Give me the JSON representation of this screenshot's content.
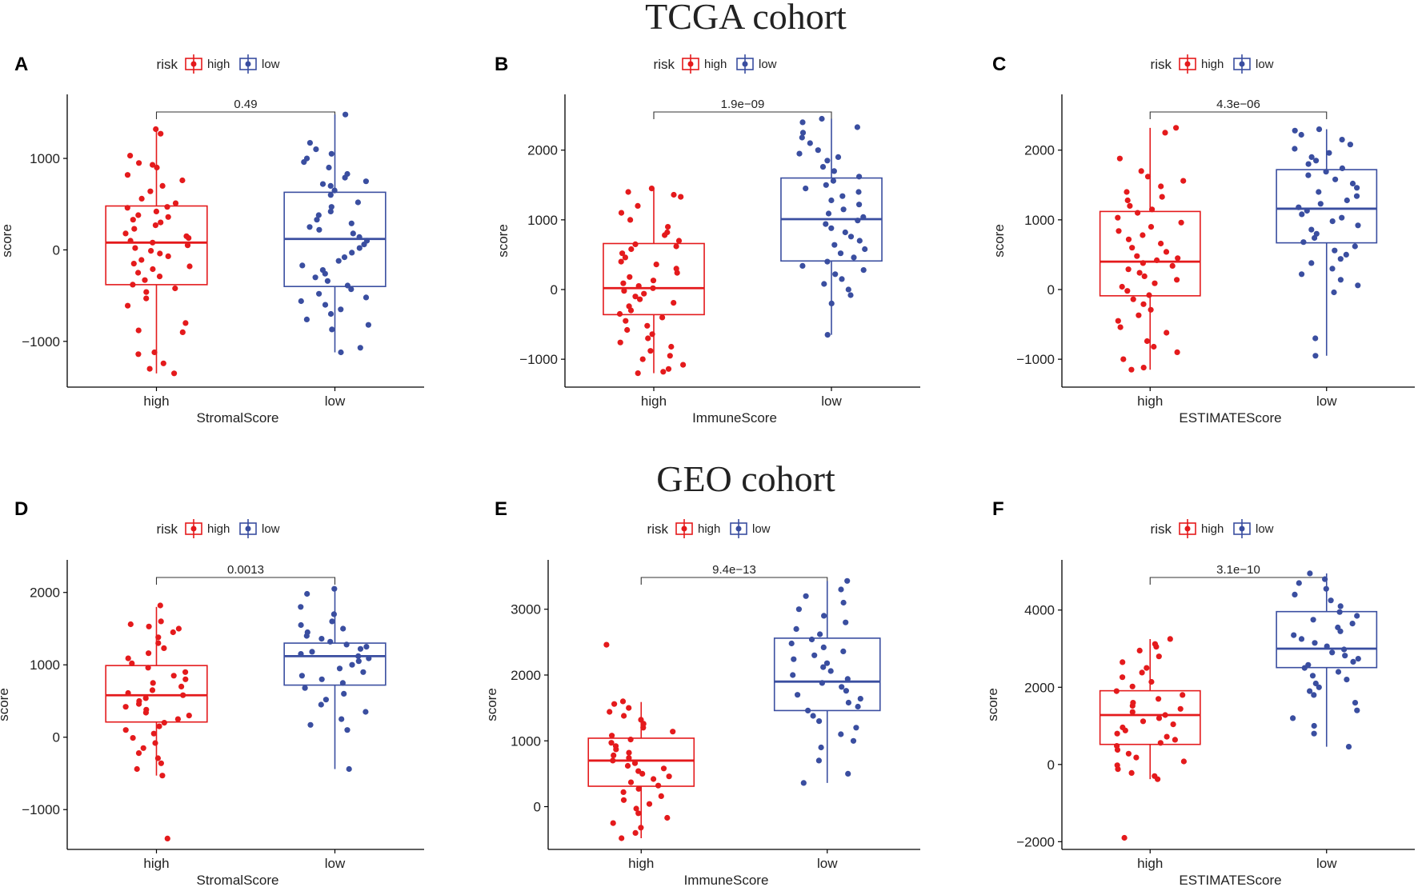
{
  "cohorts": [
    {
      "title": "TCGA cohort"
    },
    {
      "title": "GEO cohort"
    }
  ],
  "legend": {
    "title": "risk",
    "entries": [
      "high",
      "low"
    ]
  },
  "colors": {
    "high": "#e41a1c",
    "low": "#3a4ea0",
    "axis": "#000000"
  },
  "chart_data": [
    {
      "type": "boxplot",
      "panel": "A",
      "cohort": "TCGA cohort",
      "xlabel": "StromalScore",
      "ylabel": "score",
      "categories": [
        "high",
        "low"
      ],
      "ylim": [
        -1500,
        1700
      ],
      "yticks": [
        -1000,
        0,
        1000
      ],
      "pvalue": "0.49",
      "series": [
        {
          "name": "high",
          "min": -1350,
          "q1": -380,
          "median": 80,
          "q3": 480,
          "max": 1330,
          "points": [
            1320,
            1270,
            1030,
            950,
            930,
            900,
            820,
            760,
            700,
            640,
            560,
            510,
            470,
            460,
            420,
            380,
            360,
            330,
            300,
            270,
            230,
            180,
            150,
            130,
            100,
            80,
            50,
            20,
            -10,
            -40,
            -70,
            -110,
            -150,
            -180,
            -210,
            -250,
            -290,
            -330,
            -380,
            -420,
            -460,
            -530,
            -610,
            -800,
            -880,
            -900,
            -1120,
            -1140,
            -1240,
            -1300,
            -1350
          ]
        },
        {
          "name": "low",
          "min": -1120,
          "q1": -400,
          "median": 120,
          "q3": 630,
          "max": 1480,
          "points": [
            1480,
            1170,
            1100,
            1050,
            1000,
            960,
            900,
            830,
            790,
            750,
            720,
            700,
            650,
            600,
            520,
            470,
            420,
            380,
            330,
            290,
            250,
            220,
            180,
            140,
            100,
            60,
            20,
            -30,
            -80,
            -120,
            -170,
            -220,
            -260,
            -300,
            -340,
            -390,
            -430,
            -480,
            -520,
            -560,
            -600,
            -650,
            -700,
            -760,
            -820,
            -870,
            -1070,
            -1120
          ]
        }
      ]
    },
    {
      "type": "boxplot",
      "panel": "B",
      "cohort": "TCGA cohort",
      "xlabel": "ImmuneScore",
      "ylabel": "score",
      "categories": [
        "high",
        "low"
      ],
      "ylim": [
        -1400,
        2800
      ],
      "yticks": [
        -1000,
        0,
        1000,
        2000
      ],
      "pvalue": "1.9e−09",
      "series": [
        {
          "name": "high",
          "min": -1200,
          "q1": -360,
          "median": 20,
          "q3": 660,
          "max": 1450,
          "points": [
            1450,
            1400,
            1360,
            1330,
            1200,
            1100,
            1000,
            900,
            820,
            780,
            700,
            650,
            620,
            580,
            520,
            460,
            400,
            360,
            300,
            240,
            180,
            130,
            90,
            50,
            20,
            -20,
            -60,
            -100,
            -140,
            -190,
            -240,
            -300,
            -350,
            -400,
            -450,
            -520,
            -580,
            -640,
            -700,
            -760,
            -820,
            -880,
            -950,
            -1000,
            -1080,
            -1140,
            -1180,
            -1200
          ]
        },
        {
          "name": "low",
          "min": -650,
          "q1": 410,
          "median": 1010,
          "q3": 1600,
          "max": 2450,
          "points": [
            2450,
            2400,
            2330,
            2250,
            2180,
            2100,
            2000,
            1950,
            1900,
            1850,
            1760,
            1700,
            1620,
            1560,
            1500,
            1450,
            1400,
            1340,
            1280,
            1220,
            1150,
            1090,
            1040,
            990,
            940,
            880,
            820,
            760,
            700,
            640,
            580,
            520,
            460,
            400,
            340,
            280,
            220,
            150,
            80,
            0,
            -80,
            -200,
            -650
          ]
        }
      ]
    },
    {
      "type": "boxplot",
      "panel": "C",
      "cohort": "TCGA cohort",
      "xlabel": "ESTIMATEScore",
      "ylabel": "score",
      "categories": [
        "high",
        "low"
      ],
      "ylim": [
        -1400,
        2800
      ],
      "yticks": [
        -1000,
        0,
        1000,
        2000
      ],
      "pvalue": "4.3e−06",
      "series": [
        {
          "name": "high",
          "min": -1150,
          "q1": -90,
          "median": 400,
          "q3": 1120,
          "max": 2320,
          "points": [
            2320,
            2250,
            1880,
            1700,
            1620,
            1560,
            1480,
            1400,
            1330,
            1280,
            1200,
            1150,
            1100,
            1030,
            960,
            900,
            840,
            780,
            720,
            660,
            600,
            540,
            480,
            450,
            420,
            380,
            340,
            290,
            240,
            190,
            140,
            90,
            40,
            -20,
            -80,
            -140,
            -210,
            -290,
            -370,
            -450,
            -540,
            -620,
            -740,
            -820,
            -900,
            -1000,
            -1120,
            -1150
          ]
        },
        {
          "name": "low",
          "min": -950,
          "q1": 670,
          "median": 1160,
          "q3": 1720,
          "max": 2300,
          "points": [
            2300,
            2280,
            2220,
            2150,
            2080,
            2020,
            1960,
            1900,
            1850,
            1800,
            1740,
            1690,
            1640,
            1580,
            1520,
            1460,
            1400,
            1340,
            1280,
            1230,
            1180,
            1130,
            1080,
            1030,
            980,
            920,
            860,
            800,
            740,
            680,
            620,
            560,
            500,
            440,
            380,
            300,
            220,
            140,
            60,
            -40,
            -700,
            -950
          ]
        }
      ]
    },
    {
      "type": "boxplot",
      "panel": "D",
      "cohort": "GEO cohort",
      "xlabel": "StromalScore",
      "ylabel": "score",
      "categories": [
        "high",
        "low"
      ],
      "ylim": [
        -1550,
        2450
      ],
      "yticks": [
        -1000,
        0,
        1000,
        2000
      ],
      "pvalue": "0.0013",
      "series": [
        {
          "name": "high",
          "min": -530,
          "q1": 210,
          "median": 580,
          "q3": 990,
          "max": 1800,
          "points": [
            1820,
            1600,
            1560,
            1530,
            1500,
            1450,
            1380,
            1300,
            1230,
            1160,
            1090,
            1020,
            960,
            900,
            850,
            800,
            750,
            700,
            650,
            610,
            580,
            540,
            500,
            460,
            420,
            380,
            340,
            300,
            250,
            200,
            150,
            100,
            50,
            -10,
            -80,
            -150,
            -220,
            -290,
            -360,
            -440,
            -530,
            -1400
          ]
        },
        {
          "name": "low",
          "min": -440,
          "q1": 720,
          "median": 1120,
          "q3": 1300,
          "max": 2050,
          "points": [
            2050,
            1980,
            1800,
            1700,
            1600,
            1550,
            1500,
            1450,
            1400,
            1360,
            1320,
            1280,
            1250,
            1220,
            1180,
            1150,
            1120,
            1090,
            1050,
            1000,
            950,
            900,
            850,
            800,
            750,
            680,
            600,
            520,
            450,
            350,
            250,
            170,
            100,
            -440
          ]
        }
      ]
    },
    {
      "type": "boxplot",
      "panel": "E",
      "cohort": "GEO cohort",
      "xlabel": "ImmuneScore",
      "ylabel": "score",
      "categories": [
        "high",
        "low"
      ],
      "ylim": [
        -650,
        3750
      ],
      "yticks": [
        0,
        1000,
        2000,
        3000
      ],
      "pvalue": "9.4e−13",
      "series": [
        {
          "name": "high",
          "min": -480,
          "q1": 310,
          "median": 700,
          "q3": 1040,
          "max": 1590,
          "points": [
            2460,
            1600,
            1560,
            1500,
            1440,
            1380,
            1320,
            1260,
            1200,
            1140,
            1080,
            1020,
            970,
            920,
            870,
            820,
            780,
            740,
            700,
            660,
            620,
            580,
            540,
            500,
            460,
            420,
            370,
            320,
            270,
            220,
            160,
            100,
            40,
            -30,
            -100,
            -170,
            -250,
            -320,
            -400,
            -480
          ]
        },
        {
          "name": "low",
          "min": 360,
          "q1": 1460,
          "median": 1900,
          "q3": 2560,
          "max": 3430,
          "points": [
            3430,
            3300,
            3200,
            3100,
            3000,
            2900,
            2800,
            2700,
            2620,
            2540,
            2480,
            2420,
            2360,
            2300,
            2240,
            2180,
            2120,
            2060,
            2000,
            1940,
            1880,
            1820,
            1760,
            1700,
            1640,
            1580,
            1520,
            1460,
            1380,
            1300,
            1200,
            1100,
            1000,
            900,
            700,
            500,
            360
          ]
        }
      ]
    },
    {
      "type": "boxplot",
      "panel": "F",
      "cohort": "GEO cohort",
      "xlabel": "ESTIMATEScore",
      "ylabel": "score",
      "categories": [
        "high",
        "low"
      ],
      "ylim": [
        -2200,
        5300
      ],
      "yticks": [
        -2000,
        0,
        2000,
        4000
      ],
      "pvalue": "3.1e−10",
      "series": [
        {
          "name": "high",
          "min": -380,
          "q1": 520,
          "median": 1280,
          "q3": 1910,
          "max": 3250,
          "points": [
            3250,
            3120,
            3050,
            2950,
            2800,
            2650,
            2500,
            2380,
            2260,
            2140,
            2020,
            1900,
            1800,
            1700,
            1600,
            1520,
            1440,
            1360,
            1280,
            1200,
            1120,
            1040,
            960,
            880,
            800,
            720,
            640,
            560,
            480,
            380,
            280,
            180,
            80,
            -20,
            -120,
            -220,
            -300,
            -380,
            -1900
          ]
        },
        {
          "name": "low",
          "min": 460,
          "q1": 2510,
          "median": 3000,
          "q3": 3960,
          "max": 4950,
          "points": [
            4950,
            4800,
            4700,
            4550,
            4400,
            4250,
            4100,
            3950,
            3850,
            3750,
            3650,
            3550,
            3450,
            3350,
            3250,
            3150,
            3060,
            2980,
            2900,
            2820,
            2740,
            2660,
            2580,
            2500,
            2400,
            2300,
            2200,
            2100,
            2000,
            1900,
            1800,
            1600,
            1400,
            1200,
            1000,
            800,
            460
          ]
        }
      ]
    }
  ]
}
